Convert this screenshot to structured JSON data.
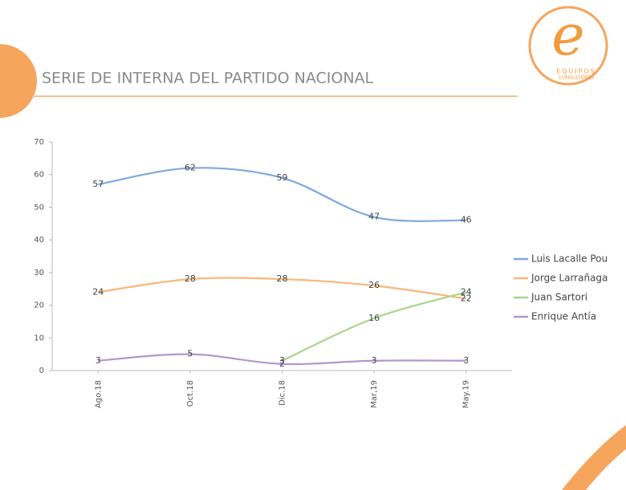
{
  "header": {
    "title": "SERIE DE INTERNA DEL PARTIDO NACIONAL"
  },
  "logo": {
    "letter": "e",
    "name": "EQUIPOS",
    "sub": "CONSULTORES"
  },
  "chart_data": {
    "type": "line",
    "categories": [
      "Ago.18",
      "Oct.18",
      "Dic.18",
      "Mar,19",
      "May.19"
    ],
    "series": [
      {
        "name": "Luis Lacalle Pou",
        "color": "#7fa8dd",
        "values": [
          57,
          62,
          59,
          47,
          46
        ]
      },
      {
        "name": "Jorge Larrañaga",
        "color": "#f8b77a",
        "values": [
          24,
          28,
          28,
          26,
          22
        ]
      },
      {
        "name": "Juan Sartori",
        "color": "#a8d68a",
        "values": [
          null,
          null,
          3,
          16,
          24
        ]
      },
      {
        "name": "Enrique Antía",
        "color": "#ae98cf",
        "values": [
          3,
          5,
          2,
          3,
          3
        ]
      }
    ],
    "ylim": [
      0,
      70
    ],
    "yticks": [
      0,
      10,
      20,
      30,
      40,
      50,
      60,
      70
    ],
    "legend": "right",
    "smooth": true
  }
}
